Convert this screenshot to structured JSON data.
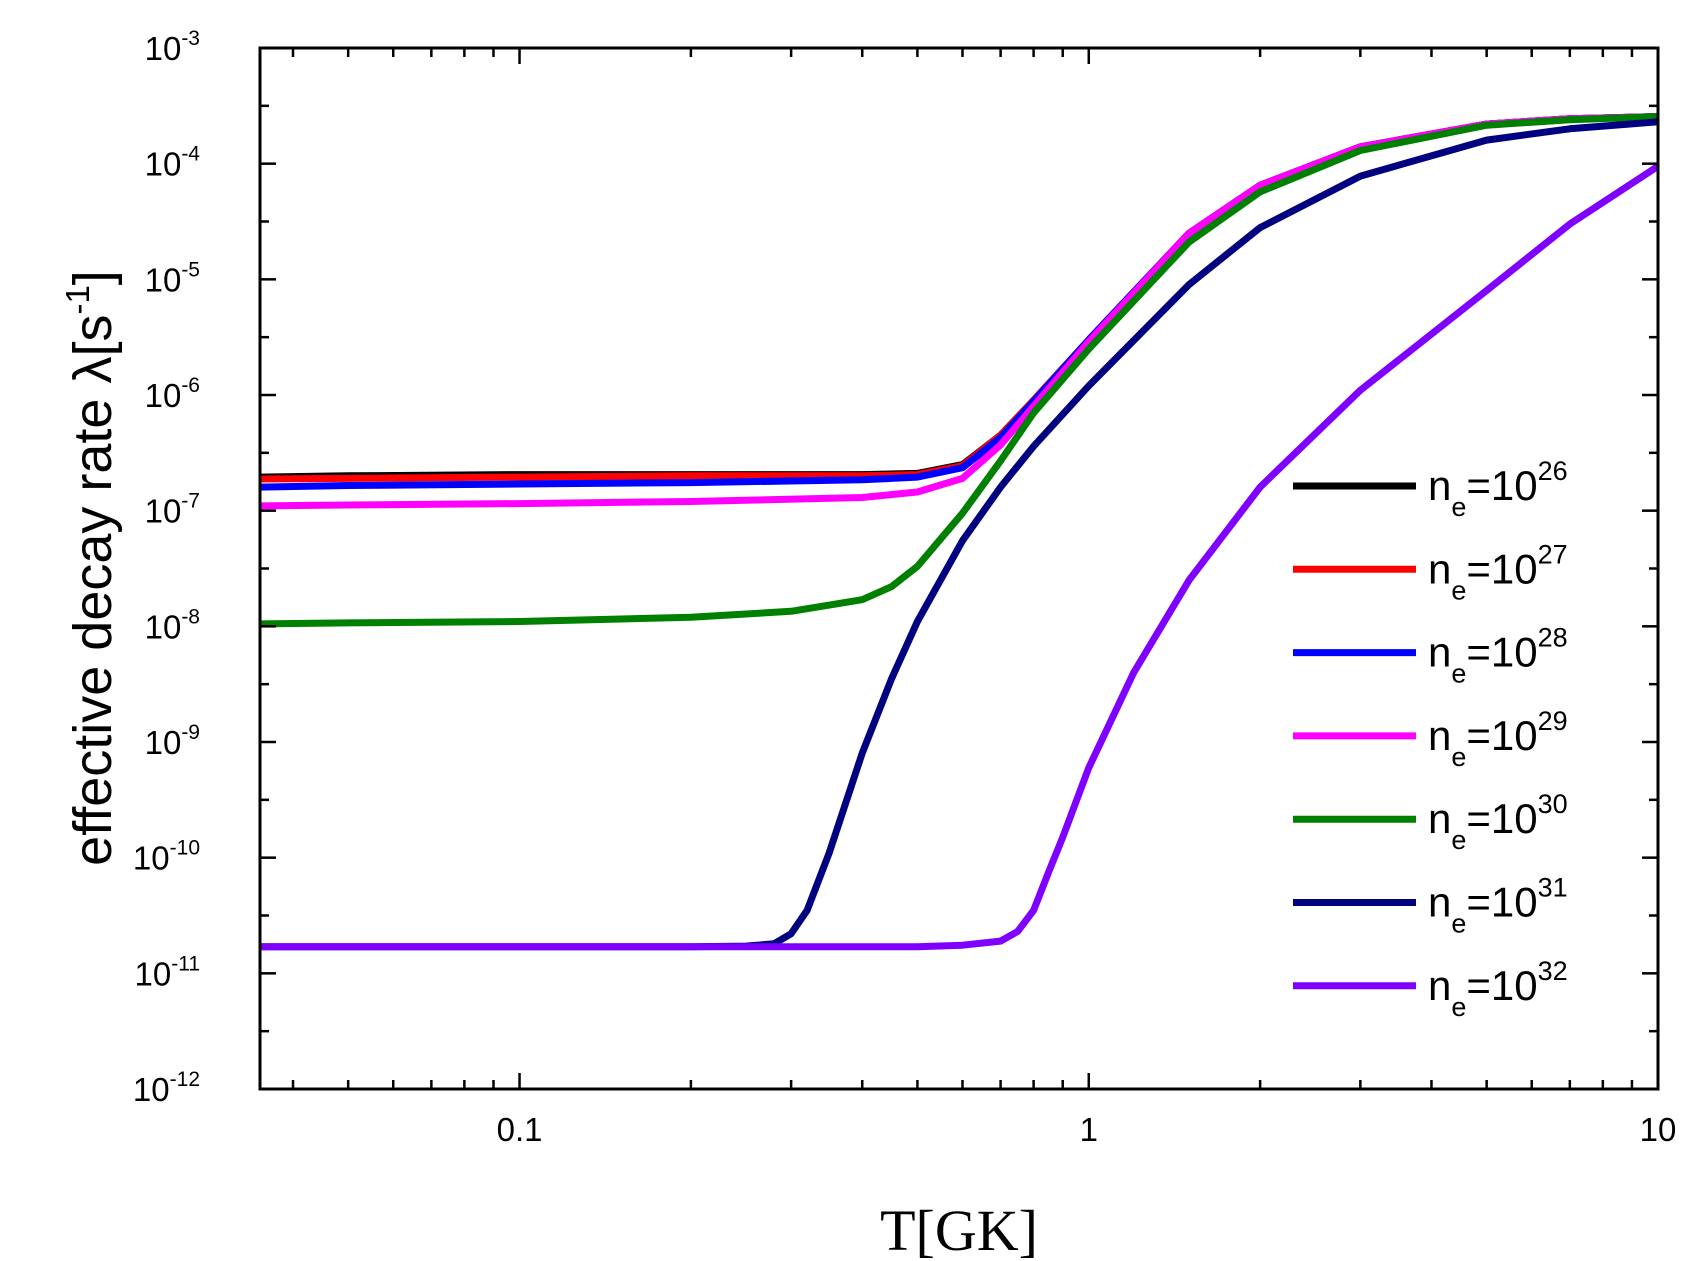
{
  "chart_data": {
    "type": "line",
    "xlabel": "T[GK]",
    "ylabel": "effective decay rate λ[s",
    "ylabel_sup": "-1",
    "ylabel_close": "]",
    "x_scale": "log",
    "y_scale": "log",
    "xlim": [
      0.035,
      10
    ],
    "ylim": [
      1e-12,
      0.001
    ],
    "x_ticks": [
      {
        "value": 0.1,
        "label": "0.1"
      },
      {
        "value": 1,
        "label": "1"
      },
      {
        "value": 10,
        "label": "10"
      }
    ],
    "y_ticks": [
      {
        "value": 0.001,
        "base": "10",
        "exp": "-3"
      },
      {
        "value": 0.0001,
        "base": "10",
        "exp": "-4"
      },
      {
        "value": 1e-05,
        "base": "10",
        "exp": "-5"
      },
      {
        "value": 1e-06,
        "base": "10",
        "exp": "-6"
      },
      {
        "value": 1e-07,
        "base": "10",
        "exp": "-7"
      },
      {
        "value": 1e-08,
        "base": "10",
        "exp": "-8"
      },
      {
        "value": 1e-09,
        "base": "10",
        "exp": "-9"
      },
      {
        "value": 1e-10,
        "base": "10",
        "exp": "-10"
      },
      {
        "value": 1e-11,
        "base": "10",
        "exp": "-11"
      },
      {
        "value": 1e-12,
        "base": "10",
        "exp": "-12"
      }
    ],
    "legend_position": "right",
    "grid": false,
    "series": [
      {
        "label_main": "n",
        "label_sub": "e",
        "label_eq": "=10",
        "label_sup": "26",
        "color": "#000000",
        "x": [
          0.035,
          0.05,
          0.1,
          0.2,
          0.4,
          0.5,
          0.6,
          0.7,
          0.8,
          1.0,
          1.5,
          2.0,
          3.0,
          5.0,
          7.0,
          10.0
        ],
        "y": [
          1.95e-07,
          2e-07,
          2.05e-07,
          2.05e-07,
          2.05e-07,
          2.1e-07,
          2.5e-07,
          4.5e-07,
          9e-07,
          3e-06,
          2.5e-05,
          6.5e-05,
          0.00014,
          0.00022,
          0.000245,
          0.000255
        ]
      },
      {
        "label_main": "n",
        "label_sub": "e",
        "label_eq": "=10",
        "label_sup": "27",
        "color": "#ff0000",
        "x": [
          0.035,
          0.05,
          0.1,
          0.2,
          0.4,
          0.5,
          0.6,
          0.7,
          0.8,
          1.0,
          1.5,
          2.0,
          3.0,
          5.0,
          7.0,
          10.0
        ],
        "y": [
          1.88e-07,
          1.9e-07,
          1.95e-07,
          2e-07,
          2e-07,
          2.05e-07,
          2.45e-07,
          4.5e-07,
          9e-07,
          3e-06,
          2.5e-05,
          6.5e-05,
          0.00014,
          0.00022,
          0.000245,
          0.000255
        ]
      },
      {
        "label_main": "n",
        "label_sub": "e",
        "label_eq": "=10",
        "label_sup": "28",
        "color": "#0000ff",
        "x": [
          0.035,
          0.05,
          0.1,
          0.2,
          0.4,
          0.5,
          0.6,
          0.7,
          0.8,
          1.0,
          1.5,
          2.0,
          3.0,
          5.0,
          7.0,
          10.0
        ],
        "y": [
          1.6e-07,
          1.65e-07,
          1.7e-07,
          1.75e-07,
          1.85e-07,
          1.95e-07,
          2.35e-07,
          4.3e-07,
          8.8e-07,
          3e-06,
          2.5e-05,
          6.5e-05,
          0.00014,
          0.00022,
          0.000245,
          0.000255
        ]
      },
      {
        "label_main": "n",
        "label_sub": "e",
        "label_eq": "=10",
        "label_sup": "29",
        "color": "#ff00ff",
        "x": [
          0.035,
          0.05,
          0.1,
          0.2,
          0.4,
          0.5,
          0.6,
          0.7,
          0.8,
          1.0,
          1.5,
          2.0,
          3.0,
          5.0,
          7.0,
          10.0
        ],
        "y": [
          1.1e-07,
          1.12e-07,
          1.15e-07,
          1.2e-07,
          1.3e-07,
          1.45e-07,
          1.9e-07,
          3.7e-07,
          8e-07,
          2.9e-06,
          2.5e-05,
          6.5e-05,
          0.00014,
          0.00022,
          0.000245,
          0.000255
        ]
      },
      {
        "label_main": "n",
        "label_sub": "e",
        "label_eq": "=10",
        "label_sup": "30",
        "color": "#008000",
        "x": [
          0.035,
          0.05,
          0.1,
          0.2,
          0.3,
          0.4,
          0.45,
          0.5,
          0.6,
          0.7,
          0.8,
          1.0,
          1.5,
          2.0,
          3.0,
          5.0,
          7.0,
          10.0
        ],
        "y": [
          1.05e-08,
          1.07e-08,
          1.1e-08,
          1.2e-08,
          1.35e-08,
          1.7e-08,
          2.2e-08,
          3.3e-08,
          9.5e-08,
          2.7e-07,
          7e-07,
          2.5e-06,
          2.1e-05,
          5.7e-05,
          0.00013,
          0.000215,
          0.00024,
          0.000255
        ]
      },
      {
        "label_main": "n",
        "label_sub": "e",
        "label_eq": "=10",
        "label_sup": "31",
        "color": "#000080",
        "x": [
          0.035,
          0.1,
          0.2,
          0.25,
          0.28,
          0.3,
          0.32,
          0.35,
          0.4,
          0.45,
          0.5,
          0.6,
          0.7,
          0.8,
          1.0,
          1.5,
          2.0,
          3.0,
          5.0,
          7.0,
          10.0
        ],
        "y": [
          1.7e-11,
          1.7e-11,
          1.7e-11,
          1.72e-11,
          1.8e-11,
          2.2e-11,
          3.5e-11,
          1.1e-10,
          8e-10,
          3.5e-09,
          1.1e-08,
          5.5e-08,
          1.6e-07,
          3.6e-07,
          1.2e-06,
          9e-06,
          2.8e-05,
          7.8e-05,
          0.00016,
          0.0002,
          0.00023
        ]
      },
      {
        "label_main": "n",
        "label_sub": "e",
        "label_eq": "=10",
        "label_sup": "32",
        "color": "#8000ff",
        "x": [
          0.035,
          0.1,
          0.3,
          0.5,
          0.6,
          0.7,
          0.75,
          0.8,
          0.85,
          0.9,
          1.0,
          1.2,
          1.5,
          2.0,
          3.0,
          5.0,
          7.0,
          10.0
        ],
        "y": [
          1.7e-11,
          1.7e-11,
          1.7e-11,
          1.7e-11,
          1.75e-11,
          1.9e-11,
          2.3e-11,
          3.5e-11,
          7.5e-11,
          1.5e-10,
          6e-10,
          4e-09,
          2.5e-08,
          1.6e-07,
          1.1e-06,
          8e-06,
          3e-05,
          9.5e-05
        ]
      }
    ]
  }
}
